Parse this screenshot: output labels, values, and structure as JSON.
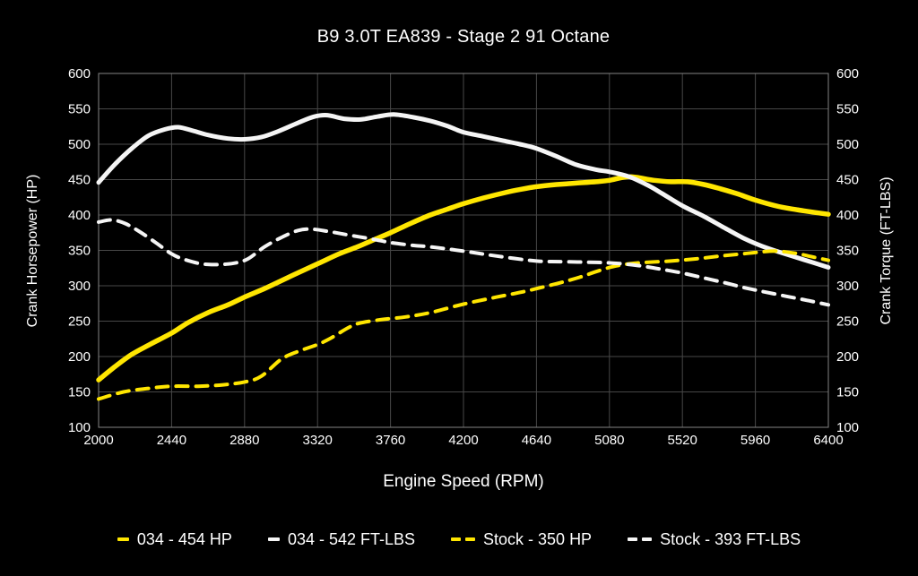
{
  "title": "B9 3.0T EA839 - Stage 2 91 Octane",
  "colors": {
    "background": "#000000",
    "grid": "#474747",
    "border": "#848484",
    "text": "#ffffff",
    "accent_yellow": "#ffe600",
    "accent_white": "#f5f5f5"
  },
  "axes": {
    "x": {
      "label": "Engine Speed (RPM)",
      "ticks": [
        2000,
        2440,
        2880,
        3320,
        3760,
        4200,
        4640,
        5080,
        5520,
        5960,
        6400
      ]
    },
    "y_left": {
      "label": "Crank Horsepower (HP)",
      "ticks": [
        100,
        150,
        200,
        250,
        300,
        350,
        400,
        450,
        500,
        550,
        600
      ]
    },
    "y_right": {
      "label": "Crank Torque (FT-LBS)",
      "ticks": [
        100,
        150,
        200,
        250,
        300,
        350,
        400,
        450,
        500,
        550,
        600
      ]
    }
  },
  "legend": [
    {
      "label": "034 - 454 HP",
      "color": "#ffe600",
      "style": "solid"
    },
    {
      "label": "034 - 542 FT-LBS",
      "color": "#f5f5f5",
      "style": "solid"
    },
    {
      "label": "Stock - 350 HP",
      "color": "#ffe600",
      "style": "dashed"
    },
    {
      "label": "Stock - 393 FT-LBS",
      "color": "#f5f5f5",
      "style": "dashed"
    }
  ],
  "chart_data": {
    "type": "line",
    "title": "B9 3.0T EA839 - Stage 2 91 Octane",
    "xlabel": "Engine Speed (RPM)",
    "ylabel_left": "Crank Horsepower (HP)",
    "ylabel_right": "Crank Torque (FT-LBS)",
    "x": {
      "min": 2000,
      "max": 6400,
      "ticks": [
        2000,
        2440,
        2880,
        3320,
        3760,
        4200,
        4640,
        5080,
        5520,
        5960,
        6400
      ]
    },
    "y": {
      "min": 100,
      "max": 600,
      "ticks": [
        100,
        150,
        200,
        250,
        300,
        350,
        400,
        450,
        500,
        550,
        600
      ]
    },
    "grid": true,
    "legend_position": "bottom",
    "series": [
      {
        "name": "034 - 454 HP",
        "unit": "HP",
        "peak": 454,
        "color": "#ffe600",
        "style": "solid",
        "width": 5.5,
        "points": [
          [
            2000,
            167
          ],
          [
            2100,
            186
          ],
          [
            2200,
            203
          ],
          [
            2300,
            216
          ],
          [
            2440,
            233
          ],
          [
            2540,
            248
          ],
          [
            2660,
            262
          ],
          [
            2780,
            273
          ],
          [
            2880,
            284
          ],
          [
            3000,
            296
          ],
          [
            3100,
            307
          ],
          [
            3200,
            318
          ],
          [
            3320,
            331
          ],
          [
            3450,
            345
          ],
          [
            3560,
            355
          ],
          [
            3660,
            365
          ],
          [
            3760,
            375
          ],
          [
            3880,
            388
          ],
          [
            4000,
            400
          ],
          [
            4100,
            408
          ],
          [
            4200,
            416
          ],
          [
            4320,
            424
          ],
          [
            4440,
            431
          ],
          [
            4540,
            436
          ],
          [
            4640,
            440
          ],
          [
            4760,
            443
          ],
          [
            4880,
            445
          ],
          [
            5000,
            447
          ],
          [
            5080,
            449
          ],
          [
            5200,
            454
          ],
          [
            5350,
            449
          ],
          [
            5450,
            447
          ],
          [
            5550,
            447
          ],
          [
            5650,
            443
          ],
          [
            5750,
            437
          ],
          [
            5850,
            430
          ],
          [
            5960,
            421
          ],
          [
            6100,
            412
          ],
          [
            6250,
            406
          ],
          [
            6400,
            401
          ]
        ]
      },
      {
        "name": "034 - 542 FT-LBS",
        "unit": "FT-LBS",
        "peak": 542,
        "color": "#f5f5f5",
        "style": "solid",
        "width": 5,
        "points": [
          [
            2000,
            446
          ],
          [
            2100,
            472
          ],
          [
            2200,
            494
          ],
          [
            2300,
            512
          ],
          [
            2400,
            521
          ],
          [
            2480,
            524
          ],
          [
            2570,
            519
          ],
          [
            2660,
            513
          ],
          [
            2780,
            508
          ],
          [
            2880,
            507
          ],
          [
            2980,
            510
          ],
          [
            3080,
            518
          ],
          [
            3200,
            530
          ],
          [
            3300,
            539
          ],
          [
            3380,
            541
          ],
          [
            3480,
            536
          ],
          [
            3580,
            535
          ],
          [
            3680,
            539
          ],
          [
            3780,
            542
          ],
          [
            3900,
            538
          ],
          [
            4000,
            533
          ],
          [
            4100,
            526
          ],
          [
            4200,
            517
          ],
          [
            4320,
            511
          ],
          [
            4440,
            505
          ],
          [
            4540,
            500
          ],
          [
            4640,
            494
          ],
          [
            4760,
            483
          ],
          [
            4880,
            471
          ],
          [
            5000,
            464
          ],
          [
            5080,
            461
          ],
          [
            5200,
            454
          ],
          [
            5320,
            441
          ],
          [
            5400,
            430
          ],
          [
            5520,
            413
          ],
          [
            5650,
            398
          ],
          [
            5780,
            381
          ],
          [
            5900,
            366
          ],
          [
            6000,
            356
          ],
          [
            6100,
            348
          ],
          [
            6250,
            337
          ],
          [
            6400,
            326
          ]
        ]
      },
      {
        "name": "Stock - 350 HP",
        "unit": "HP",
        "peak": 350,
        "color": "#ffe600",
        "style": "dashed",
        "width": 4,
        "points": [
          [
            2000,
            140
          ],
          [
            2150,
            150
          ],
          [
            2300,
            155
          ],
          [
            2440,
            158
          ],
          [
            2600,
            158
          ],
          [
            2750,
            160
          ],
          [
            2880,
            164
          ],
          [
            2980,
            172
          ],
          [
            3100,
            196
          ],
          [
            3200,
            207
          ],
          [
            3320,
            217
          ],
          [
            3400,
            226
          ],
          [
            3500,
            240
          ],
          [
            3570,
            247
          ],
          [
            3700,
            252
          ],
          [
            3850,
            256
          ],
          [
            4000,
            262
          ],
          [
            4200,
            274
          ],
          [
            4400,
            284
          ],
          [
            4550,
            291
          ],
          [
            4640,
            296
          ],
          [
            4780,
            304
          ],
          [
            4900,
            312
          ],
          [
            5000,
            320
          ],
          [
            5100,
            327
          ],
          [
            5200,
            331
          ],
          [
            5300,
            333
          ],
          [
            5450,
            335
          ],
          [
            5600,
            338
          ],
          [
            5750,
            342
          ],
          [
            5880,
            345
          ],
          [
            5960,
            347
          ],
          [
            6080,
            349
          ],
          [
            6200,
            346
          ],
          [
            6300,
            341
          ],
          [
            6400,
            336
          ]
        ]
      },
      {
        "name": "Stock - 393 FT-LBS",
        "unit": "FT-LBS",
        "peak": 393,
        "color": "#f5f5f5",
        "style": "dashed",
        "width": 4,
        "points": [
          [
            2000,
            390
          ],
          [
            2080,
            393
          ],
          [
            2160,
            388
          ],
          [
            2250,
            376
          ],
          [
            2350,
            360
          ],
          [
            2440,
            345
          ],
          [
            2520,
            337
          ],
          [
            2620,
            331
          ],
          [
            2720,
            330
          ],
          [
            2820,
            332
          ],
          [
            2900,
            338
          ],
          [
            3000,
            355
          ],
          [
            3100,
            368
          ],
          [
            3200,
            378
          ],
          [
            3280,
            380
          ],
          [
            3380,
            377
          ],
          [
            3500,
            372
          ],
          [
            3650,
            366
          ],
          [
            3760,
            361
          ],
          [
            3900,
            357
          ],
          [
            4000,
            355
          ],
          [
            4200,
            349
          ],
          [
            4400,
            342
          ],
          [
            4640,
            335
          ],
          [
            4800,
            334
          ],
          [
            5000,
            333
          ],
          [
            5100,
            332
          ],
          [
            5200,
            330
          ],
          [
            5300,
            327
          ],
          [
            5400,
            323
          ],
          [
            5520,
            318
          ],
          [
            5650,
            311
          ],
          [
            5780,
            304
          ],
          [
            5900,
            297
          ],
          [
            6000,
            292
          ],
          [
            6150,
            285
          ],
          [
            6280,
            279
          ],
          [
            6400,
            273
          ]
        ]
      }
    ]
  }
}
